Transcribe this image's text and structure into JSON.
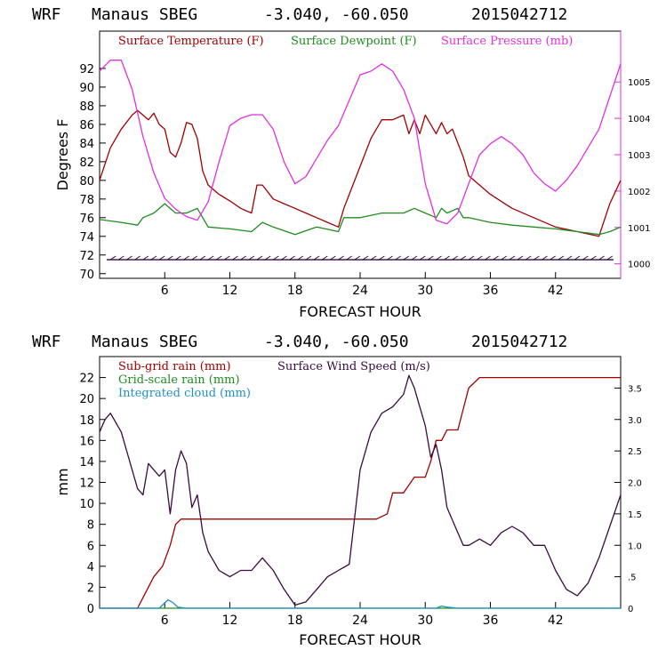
{
  "chart_data": [
    {
      "type": "line",
      "header": {
        "model": "WRF",
        "station": "Manaus SBEG",
        "coords": "-3.040, -60.050",
        "run": "2015042712"
      },
      "xlabel": "FORECAST HOUR",
      "ylabel": "Degrees F",
      "xlim": [
        0,
        48
      ],
      "x_ticks": [
        6,
        12,
        18,
        24,
        30,
        36,
        42
      ],
      "ylim": [
        69.5,
        96
      ],
      "y_ticks": [
        70,
        72,
        74,
        76,
        78,
        80,
        82,
        84,
        86,
        88,
        90,
        92
      ],
      "y2lim": [
        999.6,
        1006.4
      ],
      "y2_ticks": [
        1000,
        1001,
        1002,
        1003,
        1004,
        1005
      ],
      "series": [
        {
          "name": "Surface Temperature (F)",
          "color": "#a00000",
          "axis": "left",
          "x": [
            0,
            1,
            2,
            3,
            3.5,
            4,
            4.5,
            5,
            5.5,
            6,
            6.5,
            7,
            7.5,
            8,
            8.5,
            9,
            9.5,
            10,
            11,
            12,
            13,
            14,
            14.5,
            15,
            16,
            17,
            18,
            19,
            20,
            21,
            22,
            22.5,
            23,
            24,
            25,
            26,
            27,
            28,
            28.5,
            29,
            29.5,
            30,
            30.5,
            31,
            31.5,
            32,
            32.5,
            33,
            33.5,
            34,
            35,
            36,
            38,
            40,
            42,
            44,
            46,
            47,
            48
          ],
          "values": [
            80.0,
            83.5,
            85.5,
            87.0,
            87.5,
            87.0,
            86.5,
            87.2,
            86.0,
            85.5,
            83.0,
            82.5,
            84.0,
            86.2,
            86.0,
            84.5,
            81.0,
            79.5,
            78.5,
            77.8,
            77.0,
            76.5,
            79.5,
            79.5,
            78.0,
            77.5,
            77.0,
            76.5,
            76.0,
            75.5,
            75.0,
            77.0,
            78.5,
            81.5,
            84.5,
            86.5,
            86.5,
            87.0,
            85.0,
            86.5,
            85.0,
            87.0,
            86.0,
            85.0,
            86.2,
            85.0,
            85.5,
            84.0,
            82.5,
            80.5,
            79.5,
            78.5,
            77.0,
            76.0,
            75.0,
            74.5,
            74.0,
            77.5,
            80.0
          ]
        },
        {
          "name": "Surface Dewpoint (F)",
          "color": "#1e8c1e",
          "axis": "left",
          "x": [
            0,
            2,
            3.5,
            4,
            5,
            6,
            7,
            8,
            9,
            9.5,
            10,
            12,
            14,
            15,
            16,
            18,
            20,
            22,
            22.5,
            24,
            26,
            28,
            29,
            30,
            31,
            31.5,
            32,
            33,
            33.5,
            34,
            36,
            38,
            40,
            42,
            44,
            46,
            47,
            48
          ],
          "values": [
            75.8,
            75.5,
            75.2,
            76.0,
            76.5,
            77.5,
            76.5,
            76.5,
            77.0,
            76.0,
            75.0,
            74.8,
            74.5,
            75.5,
            75.0,
            74.2,
            75.0,
            74.5,
            76.0,
            76.0,
            76.5,
            76.5,
            77.0,
            76.5,
            76.0,
            77.0,
            76.5,
            77.0,
            76.0,
            76.0,
            75.5,
            75.2,
            75.0,
            74.8,
            74.5,
            74.2,
            74.5,
            75.0
          ]
        },
        {
          "name": "Surface Pressure (mb)",
          "color": "#e030e0",
          "axis": "right",
          "x": [
            0,
            1,
            2,
            3,
            4,
            5,
            6,
            7,
            8,
            9,
            10,
            11,
            12,
            13,
            14,
            15,
            16,
            17,
            18,
            19,
            20,
            21,
            22,
            23,
            24,
            25,
            26,
            27,
            28,
            29,
            30,
            31,
            32,
            33,
            34,
            35,
            36,
            37,
            38,
            39,
            40,
            41,
            42,
            43,
            44,
            45,
            46,
            47,
            48
          ],
          "values": [
            1005.3,
            1005.6,
            1005.6,
            1004.8,
            1003.5,
            1002.5,
            1001.8,
            1001.5,
            1001.3,
            1001.2,
            1001.7,
            1002.8,
            1003.8,
            1004.0,
            1004.1,
            1004.1,
            1003.7,
            1002.8,
            1002.2,
            1002.4,
            1002.9,
            1003.4,
            1003.8,
            1004.5,
            1005.2,
            1005.3,
            1005.5,
            1005.3,
            1004.8,
            1004.0,
            1002.2,
            1001.2,
            1001.1,
            1001.4,
            1002.2,
            1003.0,
            1003.3,
            1003.5,
            1003.3,
            1003.0,
            1002.5,
            1002.2,
            1002.0,
            1002.3,
            1002.7,
            1003.2,
            1003.7,
            1004.6,
            1005.5
          ]
        }
      ]
    },
    {
      "type": "line",
      "header": {
        "model": "WRF",
        "station": "Manaus SBEG",
        "coords": "-3.040, -60.050",
        "run": "2015042712"
      },
      "xlabel": "FORECAST HOUR",
      "ylabel": "mm",
      "xlim": [
        0,
        48
      ],
      "x_ticks": [
        6,
        12,
        18,
        24,
        30,
        36,
        42
      ],
      "ylim": [
        0,
        24
      ],
      "y_ticks": [
        0,
        2,
        4,
        6,
        8,
        10,
        12,
        14,
        16,
        18,
        20,
        22
      ],
      "y2lim": [
        0,
        4.0
      ],
      "y2_ticks": [
        {
          "v": 0,
          "label": "0"
        },
        {
          "v": 0.5,
          "label": ".5"
        },
        {
          "v": 1.0,
          "label": "1.0"
        },
        {
          "v": 1.5,
          "label": "1.5"
        },
        {
          "v": 2.0,
          "label": "2.0"
        },
        {
          "v": 2.5,
          "label": "2.5"
        },
        {
          "v": 3.0,
          "label": "3.0"
        },
        {
          "v": 3.5,
          "label": "3.5"
        }
      ],
      "series": [
        {
          "name": "Sub-grid rain (mm)",
          "color": "#a00000",
          "axis": "left",
          "x": [
            0,
            3.5,
            4,
            5,
            5.8,
            6.5,
            7,
            7.5,
            24,
            25.5,
            26.5,
            27,
            28,
            29,
            29.5,
            30,
            30.5,
            31,
            31.5,
            32,
            33,
            33.5,
            34,
            35,
            48
          ],
          "values": [
            0,
            0,
            1,
            3,
            4,
            6,
            8,
            8.5,
            8.5,
            8.5,
            9,
            11,
            11,
            12.5,
            12.5,
            12.5,
            14,
            16,
            16,
            17,
            17,
            19,
            21,
            22,
            22
          ]
        },
        {
          "name": "Grid-scale rain (mm)",
          "color": "#1e8c1e",
          "axis": "left",
          "x": [
            0,
            48
          ],
          "values": [
            0,
            0
          ]
        },
        {
          "name": "Integrated cloud (mm)",
          "color": "#1e90c8",
          "axis": "left",
          "x": [
            0,
            5.5,
            6,
            6.3,
            6.8,
            7.2,
            8,
            31,
            31.5,
            32,
            33,
            48
          ],
          "values": [
            0,
            0,
            0.5,
            0.8,
            0.5,
            0.1,
            0,
            0,
            0.2,
            0.1,
            0,
            0
          ]
        },
        {
          "name": "Surface Wind Speed (m/s)",
          "color": "#3a0a40",
          "axis": "right",
          "x": [
            0,
            0.5,
            1,
            2,
            3,
            3.5,
            4,
            4.5,
            5,
            5.5,
            6,
            6.5,
            7,
            7.5,
            8,
            8.5,
            9,
            9.5,
            10,
            11,
            12,
            13,
            14,
            15,
            16,
            17,
            18,
            19,
            20,
            21,
            22,
            23,
            24,
            25,
            26,
            27,
            28,
            28.5,
            29,
            29.5,
            30,
            30.5,
            31,
            31.5,
            32,
            33,
            33.5,
            34,
            35,
            36,
            37,
            38,
            39,
            40,
            41,
            42,
            43,
            44,
            45,
            46,
            47,
            48
          ],
          "values": [
            2.8,
            3.0,
            3.1,
            2.8,
            2.2,
            1.9,
            1.8,
            2.3,
            2.2,
            2.1,
            2.2,
            1.5,
            2.2,
            2.5,
            2.3,
            1.6,
            1.8,
            1.2,
            0.9,
            0.6,
            0.5,
            0.6,
            0.6,
            0.8,
            0.6,
            0.3,
            0.05,
            0.1,
            0.3,
            0.5,
            0.6,
            0.7,
            2.2,
            2.8,
            3.1,
            3.2,
            3.4,
            3.7,
            3.5,
            3.2,
            2.9,
            2.4,
            2.6,
            2.2,
            1.6,
            1.2,
            1.0,
            1.0,
            1.1,
            1.0,
            1.2,
            1.3,
            1.2,
            1.0,
            1.0,
            0.6,
            0.3,
            0.2,
            0.4,
            0.8,
            1.3,
            1.8
          ]
        }
      ]
    }
  ]
}
